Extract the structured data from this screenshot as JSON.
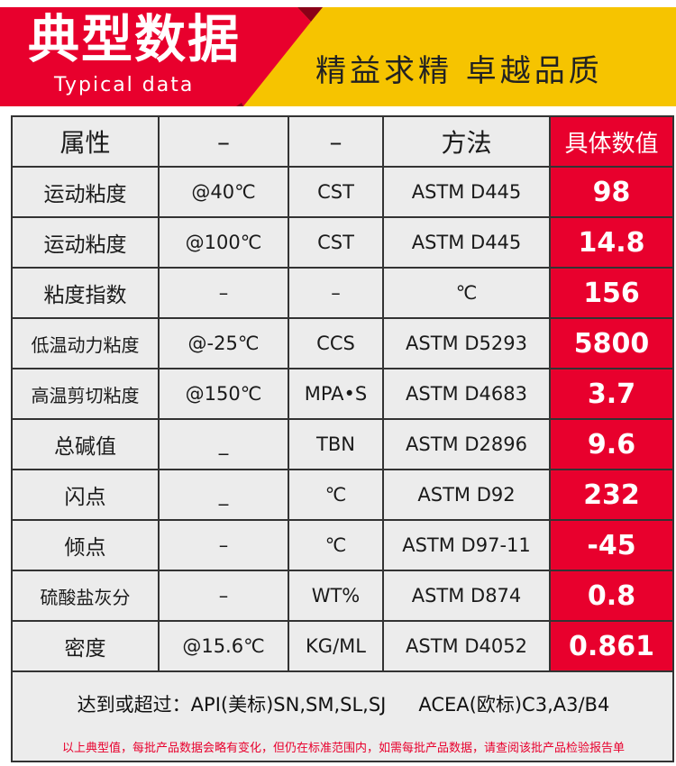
{
  "banner": {
    "title": "典型数据",
    "subtitle": "Typical data",
    "slogan": "精益求精 卓越品质",
    "colors": {
      "red": "#e8002d",
      "yellow": "#f6c400",
      "dark": "#8a0018"
    }
  },
  "table": {
    "headers": [
      "属性",
      "–",
      "–",
      "方法",
      "具体数值"
    ],
    "rows": [
      {
        "property": "运动粘度",
        "condition": "@40℃",
        "unit": "CST",
        "method": "ASTM D445",
        "value": "98"
      },
      {
        "property": "运动粘度",
        "condition": "@100℃",
        "unit": "CST",
        "method": "ASTM D445",
        "value": "14.8"
      },
      {
        "property": "粘度指数",
        "condition": "–",
        "unit": "–",
        "method": "℃",
        "value": "156"
      },
      {
        "property": "低温动力粘度",
        "condition": "@-25℃",
        "unit": "CCS",
        "method": "ASTM D5293",
        "value": "5800"
      },
      {
        "property": "高温剪切粘度",
        "condition": "@150℃",
        "unit": "MPA•S",
        "method": "ASTM D4683",
        "value": "3.7"
      },
      {
        "property": "总碱值",
        "condition": "_",
        "unit": "TBN",
        "method": "ASTM D2896",
        "value": "9.6"
      },
      {
        "property": "闪点",
        "condition": "_",
        "unit": "℃",
        "method": "ASTM D92",
        "value": "232"
      },
      {
        "property": "倾点",
        "condition": "–",
        "unit": "℃",
        "method": "ASTM D97-11",
        "value": "-45"
      },
      {
        "property": "硫酸盐灰分",
        "condition": "–",
        "unit": "WT%",
        "method": "ASTM D874",
        "value": "0.8"
      },
      {
        "property": "密度",
        "condition": "@15.6℃",
        "unit": "KG/ML",
        "method": "ASTM D4052",
        "value": "0.861"
      }
    ],
    "standards": {
      "api": "达到或超过：API(美标)SN,SM,SL,SJ",
      "acea": "ACEA(欧标)C3,A3/B4"
    },
    "note": "以上典型值，每批产品数据会略有变化，但仍在标准范围内，如需每批产品数据，请查阅该批产品检验报告单"
  }
}
